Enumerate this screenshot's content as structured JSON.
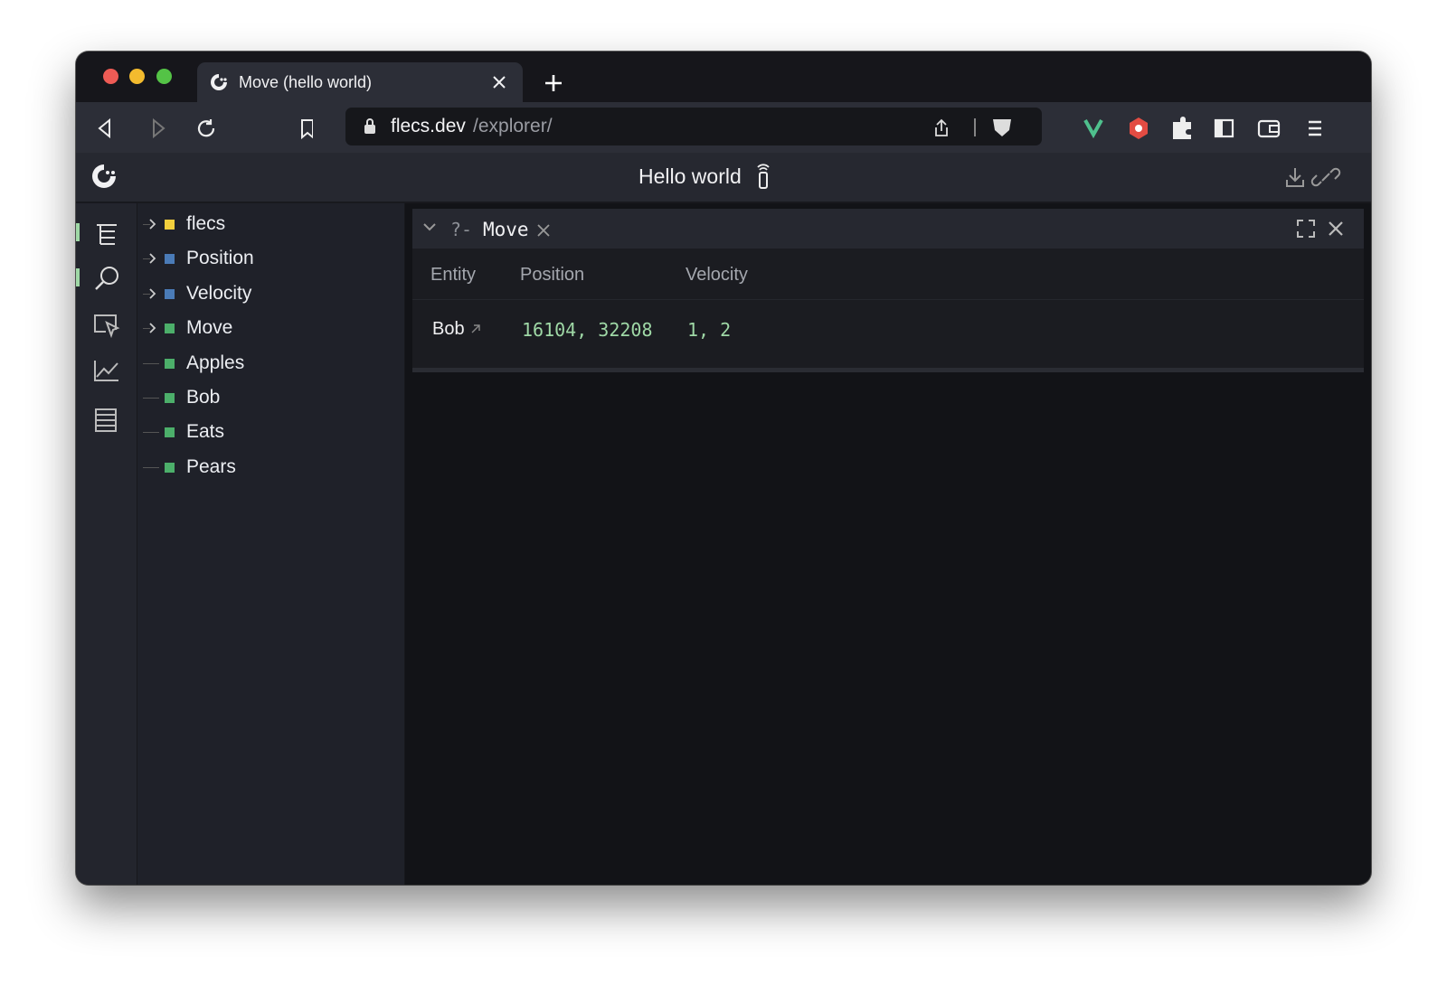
{
  "browser": {
    "tab_title": "Move (hello world)",
    "url_host": "flecs.dev",
    "url_path": "/explorer/"
  },
  "app": {
    "title": "Hello world"
  },
  "tree": [
    {
      "label": "flecs",
      "color": "#f2cf3d",
      "expandable": true
    },
    {
      "label": "Position",
      "color": "#4a7bb7",
      "expandable": true
    },
    {
      "label": "Velocity",
      "color": "#4a7bb7",
      "expandable": true
    },
    {
      "label": "Move",
      "color": "#4caf6a",
      "expandable": true
    },
    {
      "label": "Apples",
      "color": "#4caf6a",
      "expandable": false
    },
    {
      "label": "Bob",
      "color": "#4caf6a",
      "expandable": false
    },
    {
      "label": "Eats",
      "color": "#4caf6a",
      "expandable": false
    },
    {
      "label": "Pears",
      "color": "#4caf6a",
      "expandable": false
    }
  ],
  "query": {
    "prefix": "?-",
    "name": "Move",
    "table": {
      "headers": [
        "Entity",
        "Position",
        "Velocity"
      ],
      "rows": [
        [
          "Bob",
          "16104, 32208",
          "1, 2"
        ]
      ]
    }
  }
}
